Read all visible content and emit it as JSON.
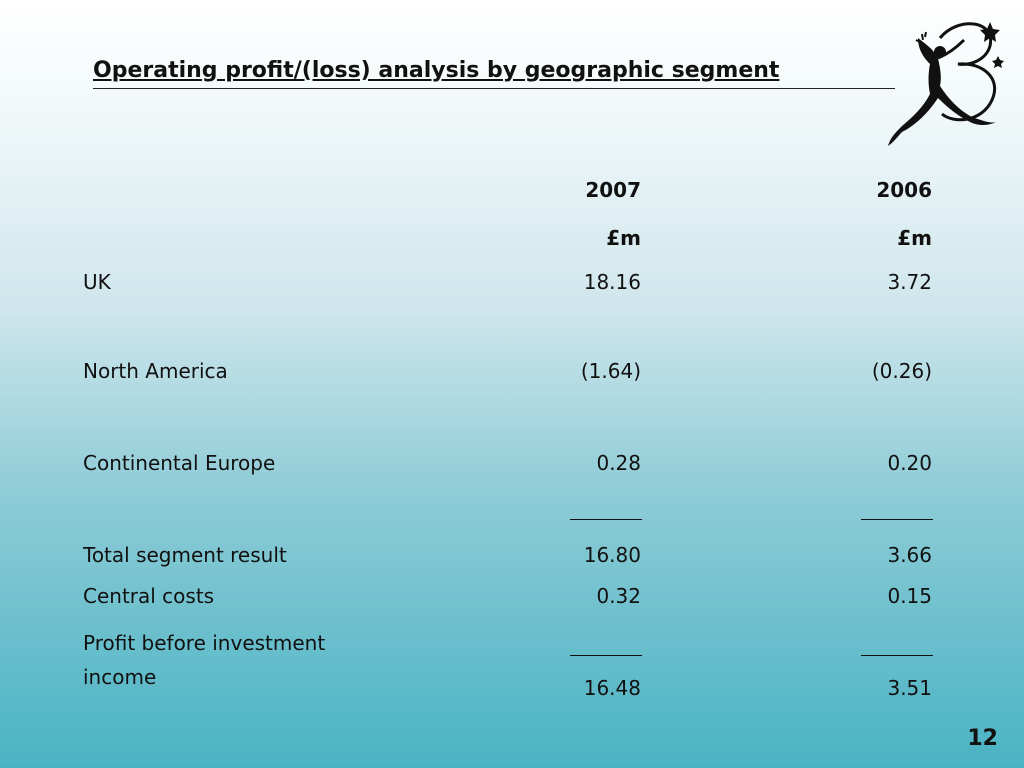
{
  "slide": {
    "title": "Operating profit/(loss) analysis by geographic segment",
    "page_number": "12"
  },
  "table": {
    "headers": [
      {
        "year": "2007",
        "unit": "£m"
      },
      {
        "year": "2006",
        "unit": "£m"
      }
    ],
    "rows": [
      {
        "label": "UK",
        "v2007": "18.16",
        "v2006": "3.72"
      },
      {
        "label": "North America",
        "v2007": "(1.64)",
        "v2006": "(0.26)"
      },
      {
        "label": "Continental Europe",
        "v2007": "0.28",
        "v2006": "0.20"
      },
      {
        "label": "Total segment result",
        "v2007": "16.80",
        "v2006": "3.66"
      },
      {
        "label": "Central costs",
        "v2007": "0.32",
        "v2006": "0.15"
      },
      {
        "label": "Profit before investment income",
        "v2007": "16.48",
        "v2006": "3.51"
      }
    ]
  },
  "colors": {
    "background_top": "#ffffff",
    "background_bottom": "#4ab3c3",
    "text": "#111111"
  },
  "icons": [
    "figure-logo-icon"
  ]
}
